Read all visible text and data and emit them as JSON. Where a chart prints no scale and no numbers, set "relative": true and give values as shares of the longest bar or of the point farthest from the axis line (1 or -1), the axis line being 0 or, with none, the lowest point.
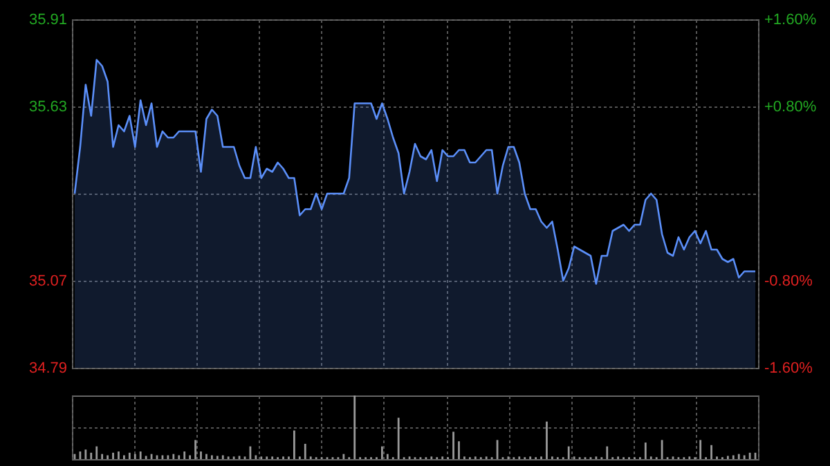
{
  "chart_data": [
    {
      "type": "area",
      "categories": [
        null,
        null,
        null,
        null,
        null,
        null,
        null,
        null,
        null,
        null,
        null,
        null,
        null,
        null,
        null,
        null,
        null,
        null,
        null,
        null,
        null,
        null,
        null,
        null,
        null,
        null,
        null,
        null,
        null,
        null,
        null,
        null,
        null,
        null,
        null,
        null,
        null,
        null,
        null,
        null,
        null,
        null,
        null,
        null,
        null,
        null,
        null,
        null,
        null,
        null,
        null,
        null,
        null,
        null,
        null,
        null,
        null,
        null,
        null,
        null,
        null,
        null,
        null,
        null,
        null,
        null,
        null,
        null,
        null,
        null,
        null,
        null,
        null,
        null,
        null,
        null,
        null,
        null,
        null,
        null,
        null,
        null,
        null,
        null,
        null,
        null,
        null,
        null,
        null,
        null,
        null,
        null,
        null,
        null,
        null,
        null,
        null,
        null,
        null,
        null,
        null,
        null,
        null,
        null,
        null,
        null,
        null,
        null,
        null,
        null,
        null,
        null,
        null,
        null,
        null,
        null,
        null,
        null,
        null,
        null,
        null,
        null,
        null,
        null,
        null
      ],
      "series": [
        {
          "color": "#5b8ff9",
          "values": [
            35.35,
            35.5,
            35.7,
            35.6,
            35.78,
            35.76,
            35.71,
            35.5,
            35.57,
            35.55,
            35.6,
            35.5,
            35.65,
            35.57,
            35.64,
            35.5,
            35.55,
            35.53,
            35.53,
            35.55,
            35.55,
            35.55,
            35.55,
            35.42,
            35.59,
            35.62,
            35.6,
            35.5,
            35.5,
            35.5,
            35.44,
            35.4,
            35.4,
            35.5,
            35.4,
            35.43,
            35.42,
            35.45,
            35.43,
            35.4,
            35.4,
            35.28,
            35.3,
            35.3,
            35.35,
            35.3,
            35.35,
            35.35,
            35.35,
            35.35,
            35.4,
            35.64,
            35.64,
            35.64,
            35.64,
            35.59,
            35.64,
            35.59,
            35.53,
            35.48,
            35.35,
            35.42,
            35.51,
            35.47,
            35.46,
            35.49,
            35.39,
            35.49,
            35.47,
            35.47,
            35.49,
            35.49,
            35.45,
            35.45,
            35.47,
            35.49,
            35.49,
            35.35,
            35.44,
            35.5,
            35.5,
            35.45,
            35.35,
            35.3,
            35.3,
            35.26,
            35.24,
            35.26,
            35.17,
            35.07,
            35.11,
            35.18,
            35.17,
            35.16,
            35.15,
            35.06,
            35.15,
            35.15,
            35.23,
            35.24,
            35.25,
            35.23,
            35.25,
            35.25,
            35.33,
            35.35,
            35.33,
            35.22,
            35.16,
            35.15,
            35.21,
            35.17,
            35.21,
            35.23,
            35.19,
            35.23,
            35.17,
            35.17,
            35.14,
            35.13,
            35.14,
            35.08,
            35.1,
            35.1,
            35.1
          ]
        }
      ],
      "ylim": [
        34.79,
        35.91
      ],
      "yticks": [
        34.79,
        35.07,
        {
          "value": 35.35,
          "label": null
        },
        35.63,
        35.91
      ],
      "y2lim": [
        -1.6,
        1.6
      ],
      "y2ticks": [
        {
          "value": -1.6,
          "label": "-1.60%"
        },
        {
          "value": -0.8,
          "label": "-0.80%"
        },
        {
          "value": 0,
          "label": null
        },
        {
          "value": 0.8,
          "label": "+0.80%"
        },
        {
          "value": 1.6,
          "label": "+1.60%"
        }
      ],
      "grid": true,
      "tick_labels": "y"
    },
    {
      "type": "bar",
      "relative": true,
      "grid": true,
      "tick_labels": false,
      "categories": [
        null,
        null,
        null,
        null,
        null,
        null,
        null,
        null,
        null,
        null,
        null,
        null,
        null,
        null,
        null,
        null,
        null,
        null,
        null,
        null,
        null,
        null,
        null,
        null,
        null,
        null,
        null,
        null,
        null,
        null,
        null,
        null,
        null,
        null,
        null,
        null,
        null,
        null,
        null,
        null,
        null,
        null,
        null,
        null,
        null,
        null,
        null,
        null,
        null,
        null,
        null,
        null,
        null,
        null,
        null,
        null,
        null,
        null,
        null,
        null,
        null,
        null,
        null,
        null,
        null,
        null,
        null,
        null,
        null,
        null,
        null,
        null,
        null,
        null,
        null,
        null,
        null,
        null,
        null,
        null,
        null,
        null,
        null,
        null,
        null,
        null,
        null,
        null,
        null,
        null,
        null,
        null,
        null,
        null,
        null,
        null,
        null,
        null,
        null,
        null,
        null,
        null,
        null,
        null,
        null,
        null,
        null,
        null,
        null,
        null,
        null,
        null,
        null,
        null,
        null,
        null,
        null,
        null,
        null,
        null,
        null,
        null,
        null,
        null,
        null
      ],
      "series": [
        {
          "color": "#9a9a9a",
          "values": [
            0.08,
            0.12,
            0.15,
            0.1,
            0.2,
            0.08,
            0.06,
            0.1,
            0.12,
            0.06,
            0.1,
            0.08,
            0.12,
            0.05,
            0.08,
            0.06,
            0.06,
            0.06,
            0.08,
            0.06,
            0.12,
            0.06,
            0.3,
            0.12,
            0.08,
            0.06,
            0.05,
            0.06,
            0.04,
            0.04,
            0.05,
            0.04,
            0.2,
            0.06,
            0.04,
            0.04,
            0.04,
            0.03,
            0.04,
            0.04,
            0.45,
            0.04,
            0.24,
            0.04,
            0.03,
            0.03,
            0.03,
            0.03,
            0.03,
            0.08,
            0.03,
            1,
            0.03,
            0.03,
            0.03,
            0.03,
            0.2,
            0.08,
            0.03,
            0.65,
            0.03,
            0.04,
            0.03,
            0.03,
            0.03,
            0.04,
            0.03,
            0.04,
            0.03,
            0.43,
            0.28,
            0.04,
            0.03,
            0.04,
            0.03,
            0.04,
            0.03,
            0.3,
            0.03,
            0.04,
            0.03,
            0.04,
            0.03,
            0.04,
            0.03,
            0.04,
            0.59,
            0.04,
            0.03,
            0.03,
            0.2,
            0.04,
            0.03,
            0.03,
            0.03,
            0.04,
            0.03,
            0.2,
            0.03,
            0.04,
            0.03,
            0.03,
            0.03,
            0.03,
            0.26,
            0.04,
            0.03,
            0.3,
            0.03,
            0.04,
            0.03,
            0.03,
            0.04,
            0.03,
            0.3,
            0.03,
            0.22,
            0.04,
            0.03,
            0.05,
            0.06,
            0.08,
            0.06,
            0.1,
            0.1
          ]
        }
      ]
    }
  ]
}
